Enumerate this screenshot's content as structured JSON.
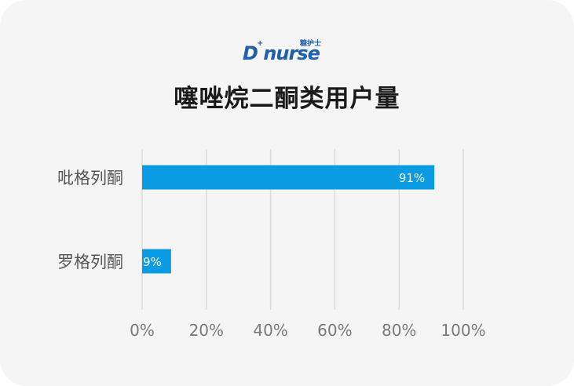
{
  "logo": {
    "main": "D nurse",
    "sub": "糖护士",
    "cross": "+"
  },
  "colors": {
    "bar": "#0a9be3",
    "grid": "#dcdcdc",
    "tick": "#7a7a7a",
    "category": "#555555",
    "title": "#1a1a1a",
    "card": "#f5f5f5"
  },
  "chart_data": {
    "type": "bar",
    "orientation": "horizontal",
    "title": "噻唑烷二酮类用户量",
    "categories": [
      "吡格列酮",
      "罗格列酮"
    ],
    "values": [
      91,
      9
    ],
    "value_labels": [
      "91%",
      "9%"
    ],
    "xlim": [
      0,
      100
    ],
    "xticks": [
      0,
      20,
      40,
      60,
      80,
      100
    ],
    "xtick_labels": [
      "0%",
      "20%",
      "40%",
      "60%",
      "80%",
      "100%"
    ],
    "grid": true,
    "legend": "none"
  }
}
